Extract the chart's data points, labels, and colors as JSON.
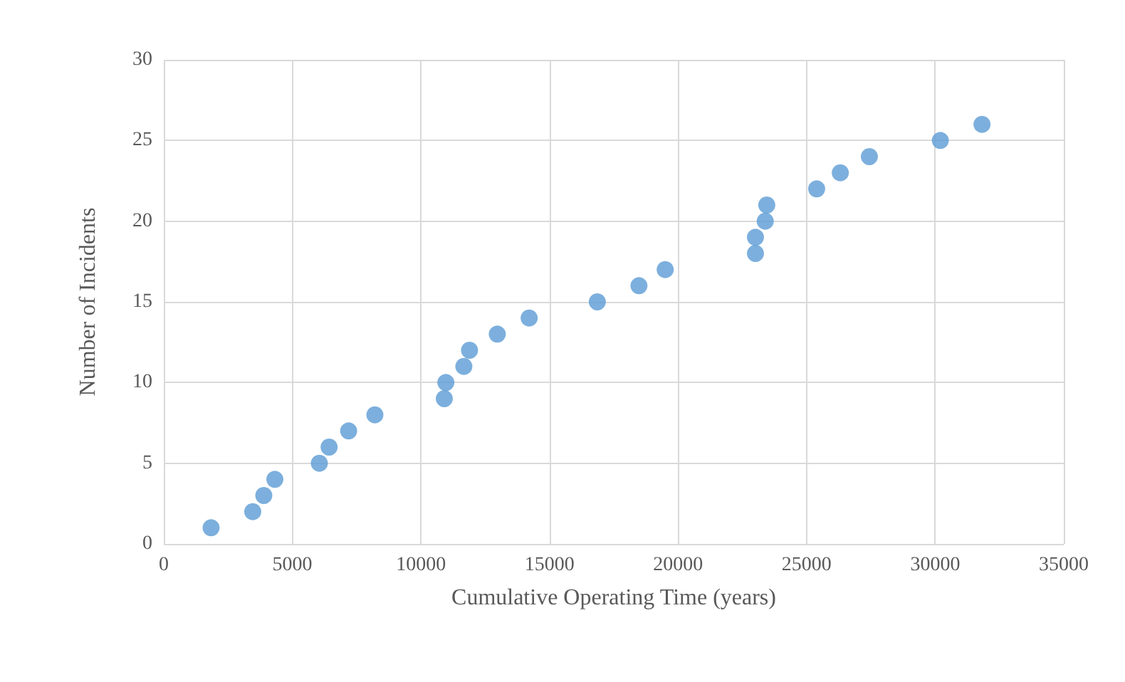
{
  "chart_data": {
    "type": "scatter",
    "xlabel": "Cumulative Operating Time (years)",
    "ylabel": "Number of Incidents",
    "x": [
      1840,
      3460,
      3890,
      4320,
      6050,
      6430,
      7190,
      8210,
      10910,
      10970,
      11670,
      11890,
      12970,
      14210,
      16860,
      18480,
      19500,
      23010,
      23010,
      23390,
      23450,
      25390,
      26310,
      27440,
      30200,
      31820
    ],
    "series": [
      {
        "color": "#5b9bd5",
        "values": [
          1,
          2,
          3,
          4,
          5,
          6,
          7,
          8,
          9,
          10,
          11,
          12,
          13,
          14,
          15,
          16,
          17,
          18,
          19,
          20,
          21,
          22,
          23,
          24,
          25,
          26
        ]
      }
    ],
    "xlim": [
      0,
      35000
    ],
    "xticks": [
      0,
      5000,
      10000,
      15000,
      20000,
      25000,
      30000,
      35000
    ],
    "ylim": [
      0,
      30
    ],
    "yticks": [
      0,
      5,
      10,
      15,
      20,
      25,
      30
    ],
    "grid": true,
    "marker": "circle"
  }
}
